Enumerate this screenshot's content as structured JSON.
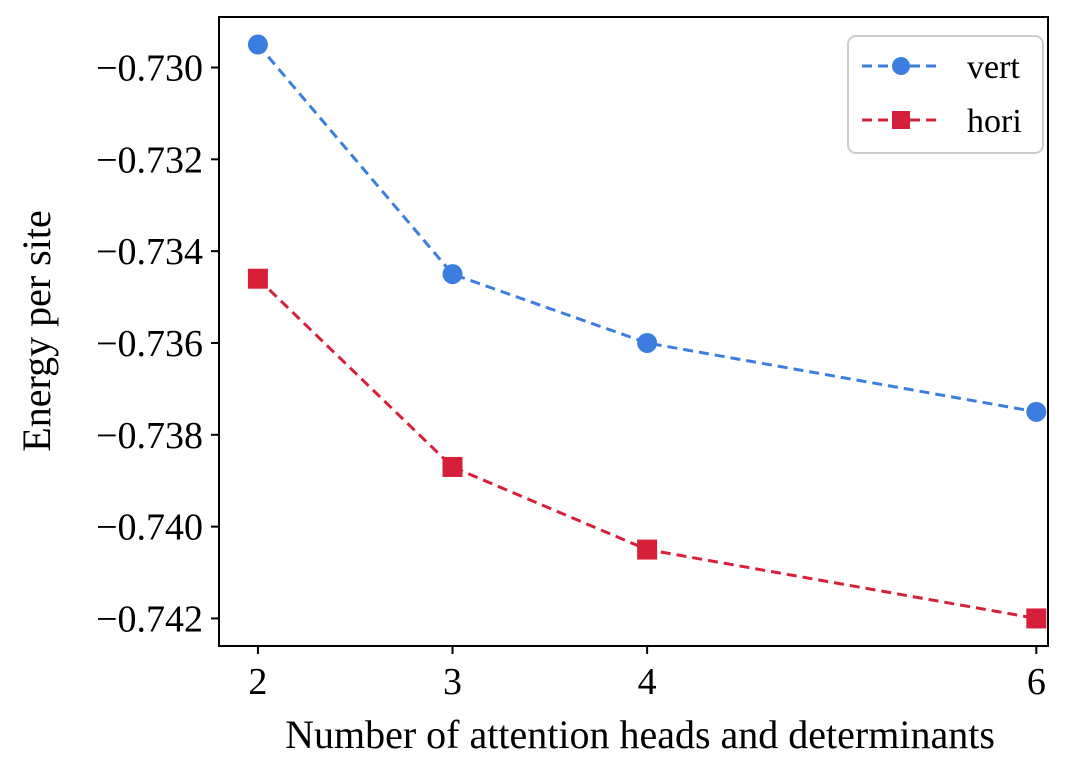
{
  "chart_data": {
    "type": "line",
    "title": "",
    "xlabel": "Number of attention heads and determinants",
    "ylabel": "Energy per site",
    "x": [
      2,
      3,
      4,
      6
    ],
    "x_tick_labels": [
      "2",
      "3",
      "4",
      "6"
    ],
    "y_ticks": [
      -0.73,
      -0.732,
      -0.734,
      -0.736,
      -0.738,
      -0.74,
      -0.742
    ],
    "y_tick_labels": [
      "−0.730",
      "−0.732",
      "−0.734",
      "−0.736",
      "−0.738",
      "−0.740",
      "−0.742"
    ],
    "xlim": [
      1.8,
      6.06
    ],
    "ylim": [
      -0.7426,
      -0.7289
    ],
    "grid": false,
    "legend_position": "top-right",
    "series": [
      {
        "name": "vert",
        "values": [
          -0.7295,
          -0.7345,
          -0.736,
          -0.7375
        ],
        "color": "#3c7ee0",
        "marker": "circle",
        "linestyle": "dashed"
      },
      {
        "name": "hori",
        "values": [
          -0.7346,
          -0.7387,
          -0.7405,
          -0.742
        ],
        "color": "#d6203a",
        "marker": "square",
        "linestyle": "dashed"
      }
    ]
  }
}
